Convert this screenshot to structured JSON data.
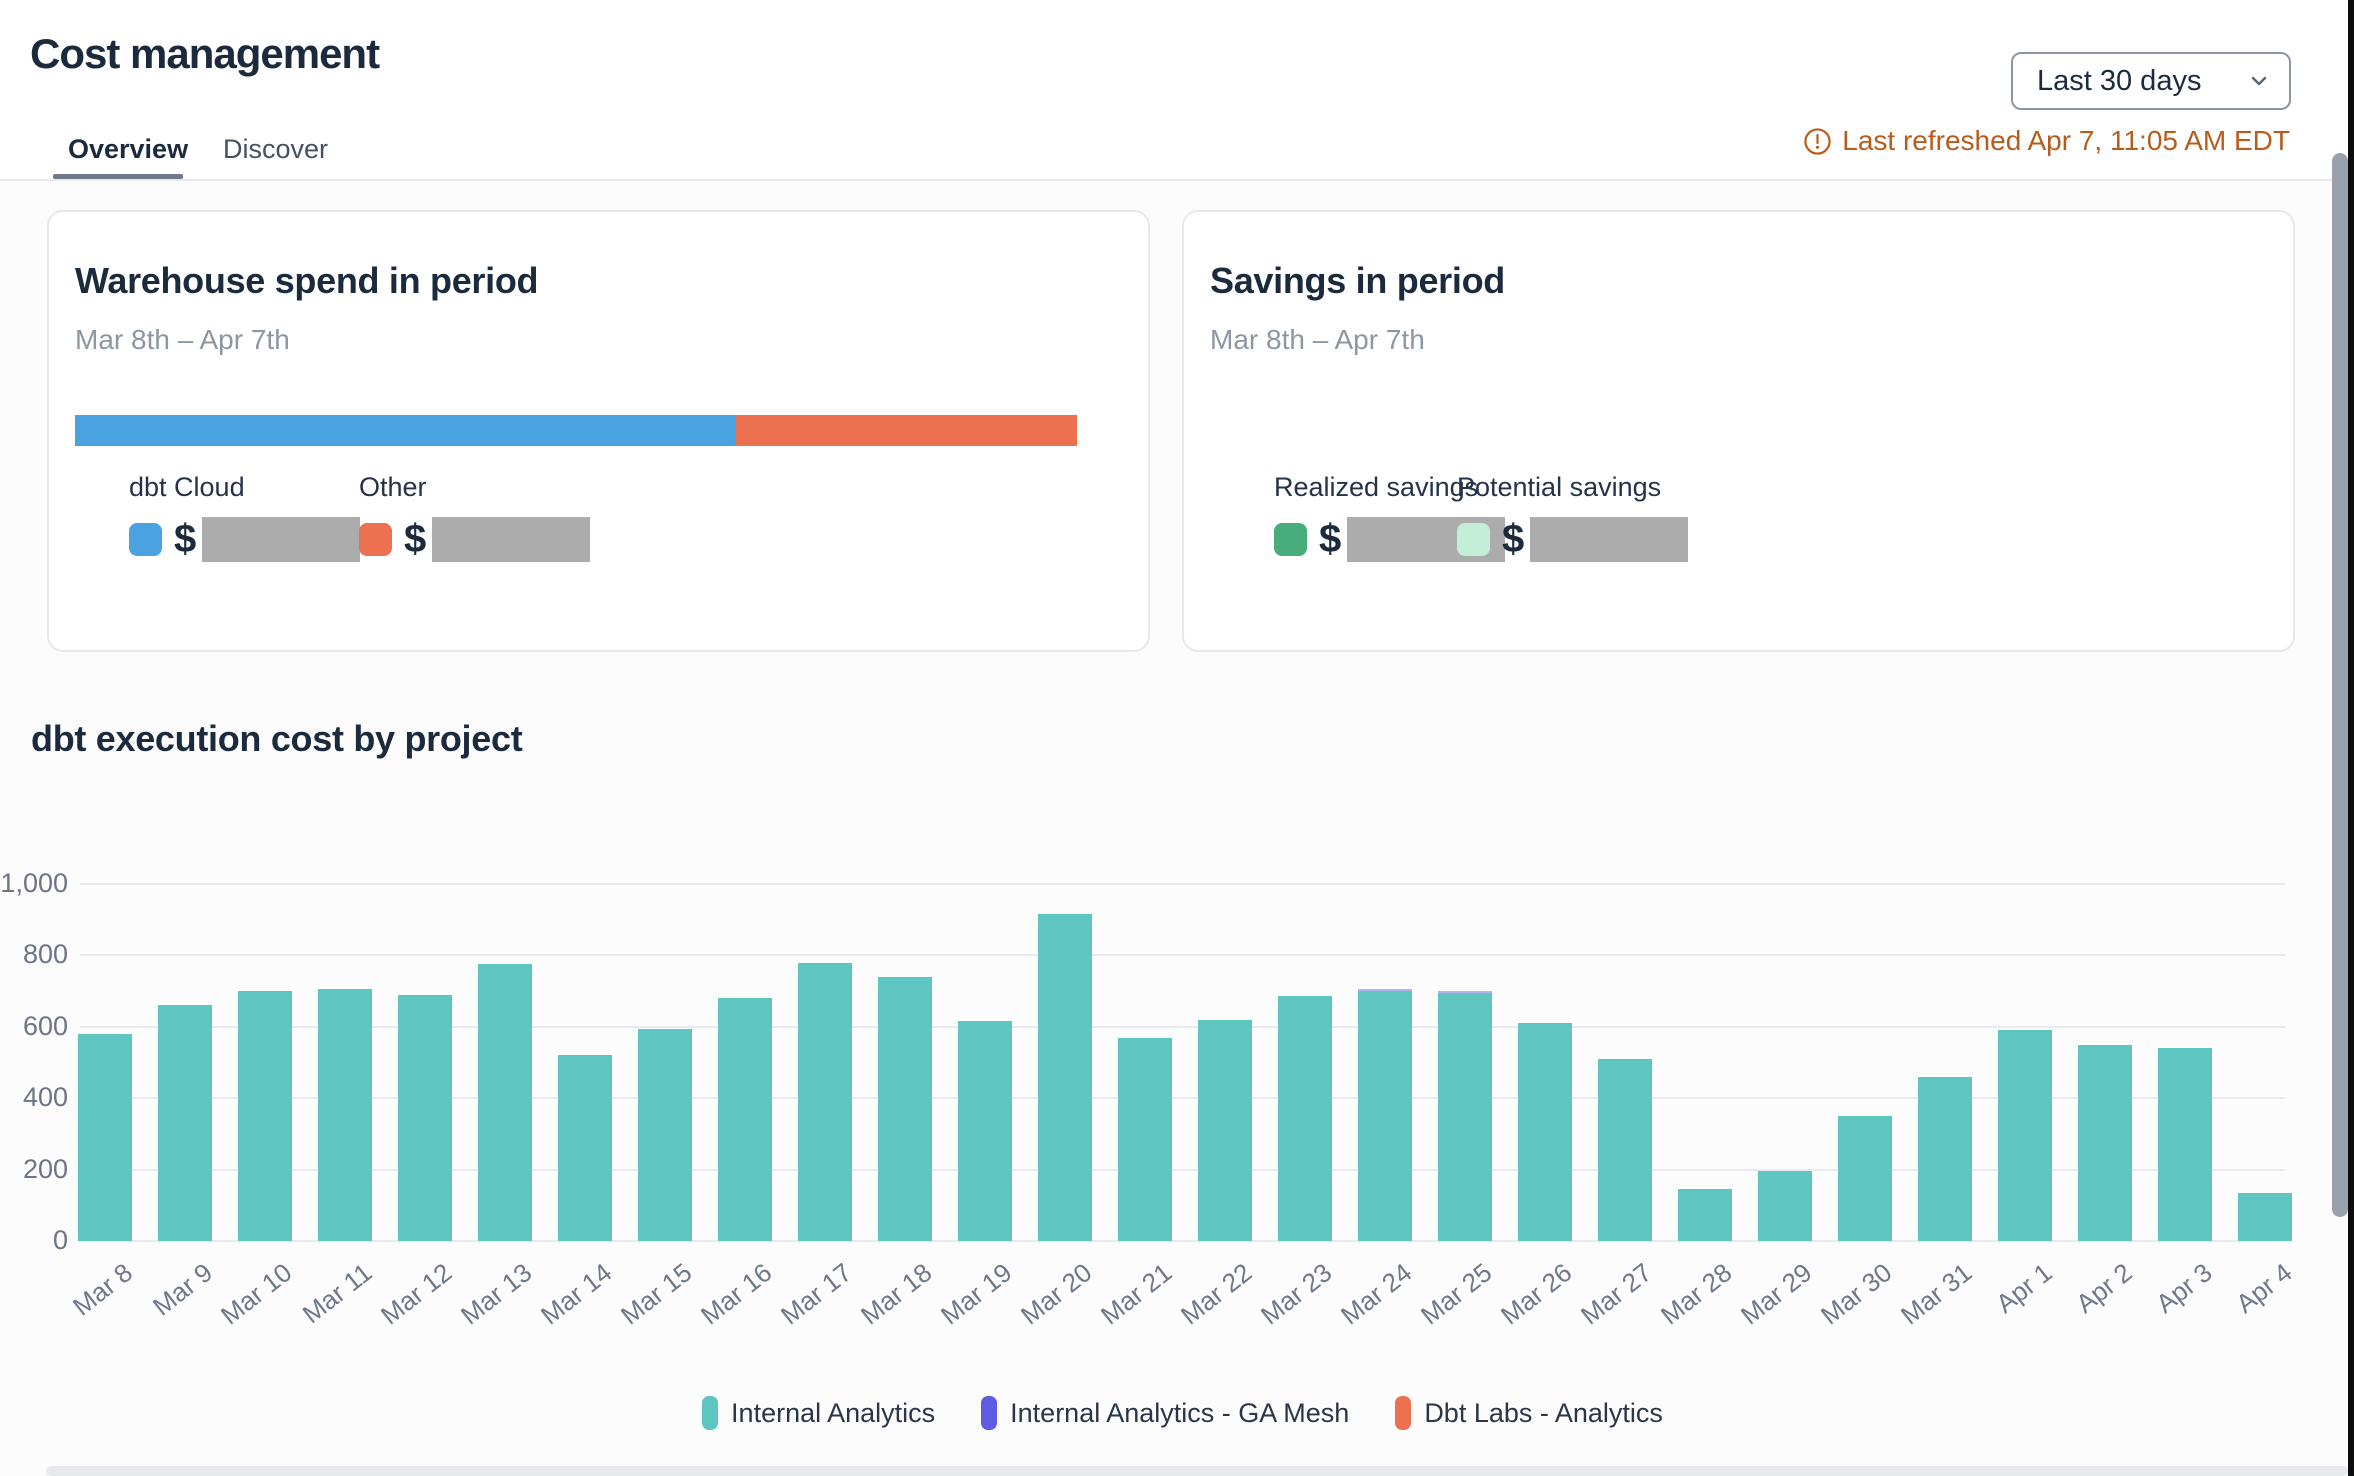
{
  "page": {
    "title": "Cost management"
  },
  "tabs": [
    {
      "label": "Overview",
      "active": true
    },
    {
      "label": "Discover",
      "active": false
    }
  ],
  "period_selector": {
    "value": "Last 30 days",
    "icon": "chevron-down-icon"
  },
  "refresh": {
    "label": "Last refreshed Apr 7, 11:05 AM EDT",
    "icon": "alert-circle-icon",
    "color": "#b85c1e"
  },
  "cards": {
    "warehouse": {
      "title": "Warehouse spend in period",
      "subtitle": "Mar 8th – Apr 7th",
      "bar_segments": [
        {
          "name": "dbt Cloud",
          "color": "#4aa3e0",
          "pct": 66
        },
        {
          "name": "Other",
          "color": "#ec7150",
          "pct": 34
        }
      ],
      "legend": [
        {
          "label": "dbt Cloud",
          "color": "#4aa3e0",
          "currency": "$",
          "value_redacted": true
        },
        {
          "label": "Other",
          "color": "#ec7150",
          "currency": "$",
          "value_redacted": true
        }
      ]
    },
    "savings": {
      "title": "Savings in period",
      "subtitle": "Mar 8th – Apr 7th",
      "legend": [
        {
          "label": "Realized savings",
          "color": "#47ad7a",
          "currency": "$",
          "value_redacted": true
        },
        {
          "label": "Potential savings",
          "color": "#c5eed8",
          "currency": "$",
          "value_redacted": true
        }
      ]
    }
  },
  "section": {
    "title": "dbt execution cost by project"
  },
  "chart_data": {
    "type": "bar",
    "stacked": true,
    "title": "dbt execution cost by project",
    "categories": [
      "Mar 8",
      "Mar 9",
      "Mar 10",
      "Mar 11",
      "Mar 12",
      "Mar 13",
      "Mar 14",
      "Mar 15",
      "Mar 16",
      "Mar 17",
      "Mar 18",
      "Mar 19",
      "Mar 20",
      "Mar 21",
      "Mar 22",
      "Mar 23",
      "Mar 24",
      "Mar 25",
      "Mar 26",
      "Mar 27",
      "Mar 28",
      "Mar 29",
      "Mar 30",
      "Mar 31",
      "Apr 1",
      "Apr 2",
      "Apr 3",
      "Apr 4"
    ],
    "series": [
      {
        "name": "Internal Analytics",
        "color": "#5ec5c0",
        "values": [
          580,
          660,
          700,
          705,
          690,
          775,
          520,
          595,
          680,
          780,
          740,
          615,
          915,
          570,
          620,
          685,
          700,
          695,
          610,
          510,
          145,
          195,
          350,
          460,
          590,
          550,
          540,
          135
        ]
      },
      {
        "name": "Internal Analytics - GA Mesh",
        "color": "#5d5ce3",
        "values": [
          0,
          0,
          0,
          0,
          0,
          0,
          0,
          0,
          0,
          0,
          0,
          0,
          0,
          0,
          0,
          0,
          6,
          6,
          0,
          0,
          0,
          0,
          0,
          0,
          0,
          0,
          0,
          0
        ]
      },
      {
        "name": "Dbt Labs - Analytics",
        "color": "#ec7150",
        "values": [
          0,
          0,
          0,
          0,
          0,
          0,
          0,
          0,
          0,
          0,
          0,
          0,
          0,
          0,
          0,
          0,
          0,
          0,
          0,
          0,
          0,
          0,
          0,
          0,
          0,
          0,
          0,
          0
        ]
      }
    ],
    "ylim": [
      0,
      1000
    ],
    "yticks": [
      0,
      200,
      400,
      600,
      800,
      1000
    ],
    "ytick_labels": [
      "0",
      "200",
      "400",
      "600",
      "800",
      "1,000"
    ],
    "grid": true,
    "legend_position": "bottom",
    "xtick_rotation": -38
  }
}
